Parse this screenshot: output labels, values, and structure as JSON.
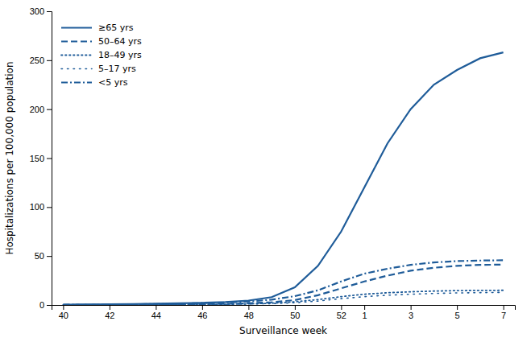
{
  "chart_data": {
    "type": "line",
    "xlabel": "Surveillance week",
    "ylabel": "Hospitalizations per 100,000 population",
    "categories": [
      "40",
      null,
      "42",
      null,
      "44",
      null,
      "46",
      null,
      "48",
      null,
      "50",
      null,
      "52",
      "1",
      null,
      "3",
      null,
      "5",
      null,
      "7"
    ],
    "ylim": [
      0,
      300
    ],
    "yticks": [
      0,
      50,
      100,
      150,
      200,
      250,
      300
    ],
    "grid": false,
    "legend": "upper left",
    "series": [
      {
        "name": "≥65 yrs",
        "color": "#1F5C99",
        "line_style": "solid",
        "values": [
          0.4,
          0.6,
          0.8,
          1.0,
          1.3,
          1.7,
          2.2,
          3.0,
          4.5,
          8.0,
          18,
          40,
          75,
          120,
          165,
          200,
          225,
          240,
          252,
          258
        ]
      },
      {
        "name": "50–64 yrs",
        "color": "#1F5C99",
        "line_style": "dashed",
        "values": [
          0.2,
          0.25,
          0.3,
          0.4,
          0.5,
          0.7,
          0.9,
          1.2,
          1.7,
          2.8,
          5.0,
          10,
          17,
          24,
          30,
          35,
          38,
          40,
          41,
          41.2
        ]
      },
      {
        "name": "18–49 yrs",
        "color": "#1F5C99",
        "line_style": "dotted",
        "values": [
          0.1,
          0.12,
          0.15,
          0.2,
          0.3,
          0.4,
          0.6,
          0.8,
          1.1,
          1.8,
          3.2,
          5.5,
          8.5,
          11.0,
          12.5,
          13.5,
          14.2,
          14.7,
          14.9,
          15.0
        ]
      },
      {
        "name": "5–17 yrs",
        "color": "#1F5C99",
        "line_style": "loosely-dotted",
        "values": [
          0.1,
          0.12,
          0.15,
          0.18,
          0.22,
          0.3,
          0.4,
          0.6,
          0.9,
          1.4,
          2.3,
          4.0,
          6.5,
          8.5,
          10.0,
          11.0,
          11.8,
          12.3,
          12.6,
          12.9
        ]
      },
      {
        "name": "<5 yrs",
        "color": "#1F5C99",
        "line_style": "dashdot",
        "values": [
          0.2,
          0.3,
          0.5,
          0.7,
          1.0,
          1.4,
          1.9,
          2.6,
          3.5,
          5.5,
          9.0,
          15,
          24,
          32,
          37,
          41,
          43.5,
          44.8,
          45.4,
          45.7
        ]
      }
    ]
  }
}
